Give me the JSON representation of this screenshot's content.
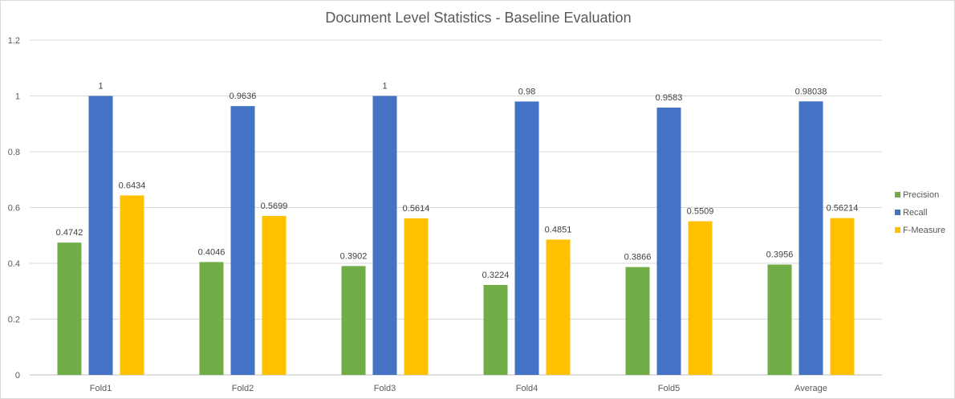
{
  "chart_data": {
    "type": "bar",
    "title": "Document Level Statistics - Baseline Evaluation",
    "categories": [
      "Fold1",
      "Fold2",
      "Fold3",
      "Fold4",
      "Fold5",
      "Average"
    ],
    "series": [
      {
        "name": "Precision",
        "color": "#70ad47",
        "values": [
          0.4742,
          0.4046,
          0.3902,
          0.3224,
          0.3866,
          0.3956
        ],
        "labels": [
          "0.4742",
          "0.4046",
          "0.3902",
          "0.3224",
          "0.3866",
          "0.3956"
        ]
      },
      {
        "name": "Recall",
        "color": "#4472c4",
        "values": [
          1,
          0.9636,
          1,
          0.98,
          0.9583,
          0.98038
        ],
        "labels": [
          "1",
          "0.9636",
          "1",
          "0.98",
          "0.9583",
          "0.98038"
        ]
      },
      {
        "name": "F-Measure",
        "color": "#ffc000",
        "values": [
          0.6434,
          0.5699,
          0.5614,
          0.4851,
          0.5509,
          0.56214
        ],
        "labels": [
          "0.6434",
          "0.5699",
          "0.5614",
          "0.4851",
          "0.5509",
          "0.56214"
        ]
      }
    ],
    "ylim": [
      0,
      1.2
    ],
    "yticks": [
      0,
      0.2,
      0.4,
      0.6,
      0.8,
      1,
      1.2
    ],
    "ytick_labels": [
      "0",
      "0.2",
      "0.4",
      "0.6",
      "0.8",
      "1",
      "1.2"
    ],
    "grid": true,
    "legend_position": "right"
  }
}
